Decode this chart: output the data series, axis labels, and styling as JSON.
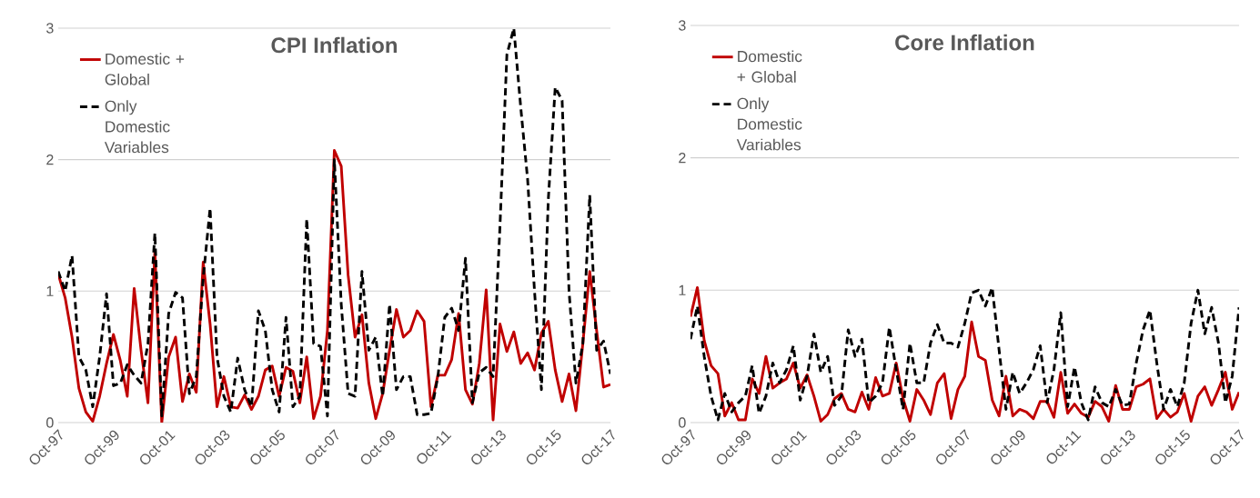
{
  "chart_data": [
    {
      "type": "line",
      "title": "CPI Inflation",
      "categories": [
        "Oct-97",
        null,
        null,
        null,
        null,
        null,
        null,
        null,
        "Oct-99",
        null,
        null,
        null,
        null,
        null,
        null,
        null,
        "Oct-01",
        null,
        null,
        null,
        null,
        null,
        null,
        null,
        "Oct-03",
        null,
        null,
        null,
        null,
        null,
        null,
        null,
        "Oct-05",
        null,
        null,
        null,
        null,
        null,
        null,
        null,
        "Oct-07",
        null,
        null,
        null,
        null,
        null,
        null,
        null,
        "Oct-09",
        null,
        null,
        null,
        null,
        null,
        null,
        null,
        "Oct-11",
        null,
        null,
        null,
        null,
        null,
        null,
        null,
        "Oct-13",
        null,
        null,
        null,
        null,
        null,
        null,
        null,
        "Oct-15",
        null,
        null,
        null,
        null,
        null,
        null,
        null,
        "Oct-17"
      ],
      "series": [
        {
          "name": "Domestic + Global",
          "color": "#c00000",
          "line_style": "solid",
          "values": [
            1.13,
            0.95,
            0.65,
            0.26,
            0.08,
            0.01,
            0.2,
            0.45,
            0.67,
            0.47,
            0.2,
            1.02,
            0.55,
            0.15,
            1.3,
            0.0,
            0.5,
            0.65,
            0.16,
            0.37,
            0.23,
            1.22,
            0.75,
            0.12,
            0.35,
            0.12,
            0.11,
            0.21,
            0.1,
            0.2,
            0.4,
            0.43,
            0.2,
            0.42,
            0.39,
            0.15,
            0.5,
            0.03,
            0.2,
            0.7,
            2.07,
            1.95,
            1.12,
            0.65,
            0.82,
            0.3,
            0.03,
            0.22,
            0.55,
            0.86,
            0.65,
            0.7,
            0.85,
            0.77,
            0.12,
            0.36,
            0.36,
            0.48,
            0.83,
            0.25,
            0.14,
            0.45,
            1.01,
            0.02,
            0.75,
            0.54,
            0.69,
            0.45,
            0.53,
            0.4,
            0.68,
            0.77,
            0.4,
            0.16,
            0.37,
            0.09,
            0.6,
            1.15,
            0.7,
            0.27,
            0.29
          ]
        },
        {
          "name": "Only Domestic Variables",
          "color": "#000000",
          "line_style": "dashed",
          "values": [
            1.15,
            1.0,
            1.27,
            0.5,
            0.4,
            0.12,
            0.5,
            0.98,
            0.28,
            0.3,
            0.44,
            0.36,
            0.3,
            0.6,
            1.44,
            0.05,
            0.83,
            0.99,
            0.95,
            0.22,
            0.35,
            1.1,
            1.63,
            0.5,
            0.2,
            0.08,
            0.49,
            0.25,
            0.12,
            0.85,
            0.7,
            0.25,
            0.08,
            0.8,
            0.12,
            0.2,
            1.55,
            0.6,
            0.58,
            0.05,
            2.0,
            0.9,
            0.22,
            0.2,
            1.15,
            0.55,
            0.65,
            0.2,
            0.9,
            0.25,
            0.35,
            0.35,
            0.06,
            0.06,
            0.07,
            0.35,
            0.8,
            0.87,
            0.7,
            1.25,
            0.15,
            0.38,
            0.42,
            0.35,
            1.5,
            2.8,
            3.0,
            2.4,
            1.85,
            1.0,
            0.25,
            1.7,
            2.55,
            2.45,
            1.0,
            0.3,
            0.6,
            1.73,
            0.55,
            0.62,
            0.37
          ]
        }
      ],
      "ylim": [
        0,
        3
      ],
      "yticks": [
        0,
        1,
        2,
        3
      ],
      "grid": "y",
      "legend": "top left"
    },
    {
      "type": "line",
      "title": "Core Inflation",
      "categories": [
        "Oct-97",
        null,
        null,
        null,
        null,
        null,
        null,
        null,
        "Oct-99",
        null,
        null,
        null,
        null,
        null,
        null,
        null,
        "Oct-01",
        null,
        null,
        null,
        null,
        null,
        null,
        null,
        "Oct-03",
        null,
        null,
        null,
        null,
        null,
        null,
        null,
        "Oct-05",
        null,
        null,
        null,
        null,
        null,
        null,
        null,
        "Oct-07",
        null,
        null,
        null,
        null,
        null,
        null,
        null,
        "Oct-09",
        null,
        null,
        null,
        null,
        null,
        null,
        null,
        "Oct-11",
        null,
        null,
        null,
        null,
        null,
        null,
        null,
        "Oct-13",
        null,
        null,
        null,
        null,
        null,
        null,
        null,
        "Oct-15",
        null,
        null,
        null,
        null,
        null,
        null,
        null,
        "Oct-17"
      ],
      "series": [
        {
          "name": "Domestic + Global",
          "color": "#c00000",
          "line_style": "solid",
          "values": [
            0.8,
            1.02,
            0.62,
            0.43,
            0.37,
            0.05,
            0.15,
            0.02,
            0.02,
            0.33,
            0.22,
            0.5,
            0.26,
            0.3,
            0.33,
            0.45,
            0.26,
            0.36,
            0.2,
            0.01,
            0.06,
            0.18,
            0.22,
            0.1,
            0.08,
            0.23,
            0.1,
            0.34,
            0.2,
            0.22,
            0.45,
            0.18,
            0.01,
            0.25,
            0.17,
            0.06,
            0.3,
            0.37,
            0.03,
            0.25,
            0.35,
            0.76,
            0.5,
            0.47,
            0.17,
            0.05,
            0.35,
            0.05,
            0.1,
            0.08,
            0.03,
            0.16,
            0.16,
            0.04,
            0.38,
            0.07,
            0.14,
            0.07,
            0.04,
            0.16,
            0.12,
            0.01,
            0.28,
            0.1,
            0.1,
            0.27,
            0.29,
            0.33,
            0.03,
            0.1,
            0.04,
            0.08,
            0.22,
            0.01,
            0.2,
            0.27,
            0.13,
            0.25,
            0.38,
            0.1,
            0.23
          ]
        },
        {
          "name": "Only Domestic Variables",
          "color": "#000000",
          "line_style": "dashed",
          "values": [
            0.63,
            0.88,
            0.5,
            0.2,
            0.02,
            0.22,
            0.08,
            0.15,
            0.2,
            0.43,
            0.07,
            0.2,
            0.45,
            0.3,
            0.4,
            0.58,
            0.17,
            0.35,
            0.67,
            0.38,
            0.5,
            0.13,
            0.2,
            0.7,
            0.5,
            0.63,
            0.15,
            0.2,
            0.3,
            0.72,
            0.4,
            0.1,
            0.6,
            0.3,
            0.3,
            0.6,
            0.74,
            0.6,
            0.6,
            0.57,
            0.75,
            0.98,
            1.0,
            0.88,
            1.02,
            0.55,
            0.1,
            0.38,
            0.22,
            0.3,
            0.4,
            0.58,
            0.15,
            0.4,
            0.83,
            0.12,
            0.42,
            0.15,
            0.02,
            0.27,
            0.15,
            0.12,
            0.25,
            0.13,
            0.14,
            0.45,
            0.7,
            0.85,
            0.45,
            0.1,
            0.25,
            0.12,
            0.3,
            0.75,
            1.0,
            0.67,
            0.87,
            0.6,
            0.15,
            0.35,
            0.87
          ]
        }
      ],
      "ylim": [
        0,
        3
      ],
      "yticks": [
        0,
        1,
        2,
        3
      ],
      "grid": "y",
      "legend": "top left"
    }
  ]
}
